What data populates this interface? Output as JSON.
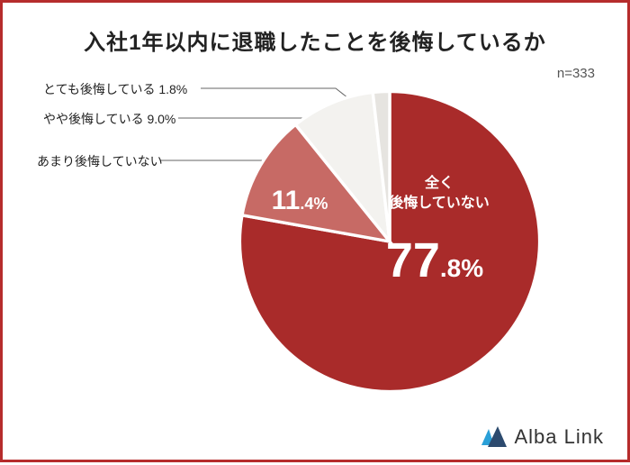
{
  "title": "入社1年以内に退職したことを後悔しているか",
  "n_label": "n=333",
  "brand": "Alba Link",
  "chart": {
    "type": "pie",
    "background_color": "#ffffff",
    "border_color": "#b62c2c",
    "slices": [
      {
        "label": "全く後悔していない",
        "value": 77.8,
        "whole": "77",
        "dec": ".8%",
        "color": "#a92b2a"
      },
      {
        "label": "あまり後悔していない",
        "value": 11.4,
        "whole": "11",
        "dec": ".4%",
        "color": "#c76a65"
      },
      {
        "label": "やや後悔している",
        "value": 9.0,
        "text": "やや後悔している 9.0%",
        "color": "#f3f2ef"
      },
      {
        "label": "とても後悔している",
        "value": 1.8,
        "text": "とても後悔している 1.8%",
        "color": "#e6e4e0"
      }
    ],
    "label_fontsize": 14,
    "main_slice_label_line1": "全く",
    "main_slice_label_line2": "後悔していない",
    "slice_stroke": "#ffffff",
    "slice_stroke_width": 2,
    "logo_cyan": "#2aa0d8",
    "logo_navy": "#2c4a6e"
  }
}
